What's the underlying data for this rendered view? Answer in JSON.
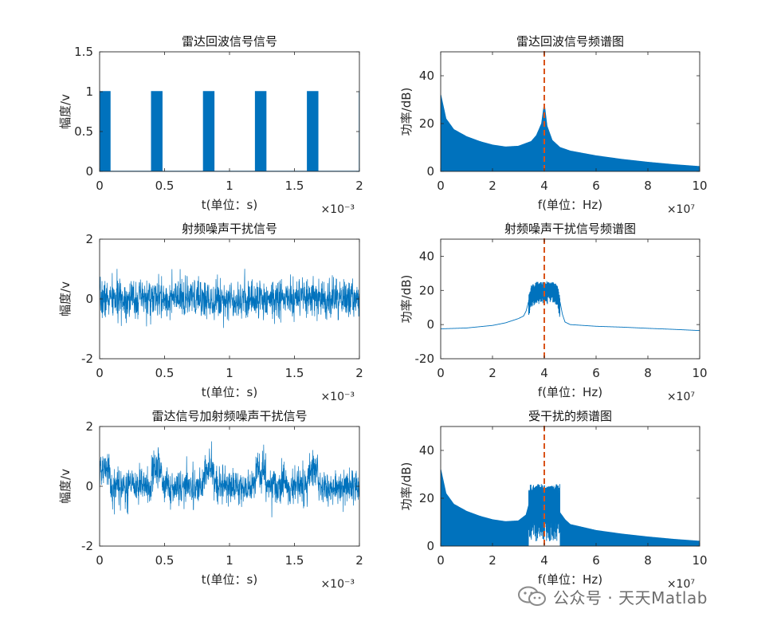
{
  "chart_data": [
    {
      "type": "line",
      "title": "雷达回波信号信号",
      "xlabel": "t(单位：s)",
      "ylabel": "幅度/v",
      "xlim": [
        0,
        0.002
      ],
      "ylim": [
        0,
        1.5
      ],
      "xticks": [
        0,
        0.0005,
        0.001,
        0.0015,
        0.002
      ],
      "xtick_labels": [
        "0",
        "0.5",
        "1",
        "1.5",
        "2"
      ],
      "yticks": [
        0,
        0.5,
        1,
        1.5
      ],
      "ytick_labels": [
        "0",
        "0.5",
        "1",
        "1.5"
      ],
      "x_exponent": "×10⁻³",
      "color": "#0072bd",
      "series": [
        {
          "kind": "pulse_train",
          "pulse_starts": [
            0,
            0.0004,
            0.0008,
            0.0012,
            0.0016,
            0.002
          ],
          "pulse_width": 8e-05,
          "high": 1,
          "low": 0
        }
      ]
    },
    {
      "type": "line",
      "title": "雷达回波信号频谱图",
      "xlabel": "f(单位：Hz)",
      "ylabel": "功率/dB)",
      "xlim": [
        0,
        100000000
      ],
      "ylim": [
        0,
        50
      ],
      "xticks": [
        0,
        20000000,
        40000000,
        60000000,
        80000000,
        100000000
      ],
      "xtick_labels": [
        "0",
        "2",
        "4",
        "6",
        "8",
        "10"
      ],
      "yticks": [
        0,
        20,
        40
      ],
      "ytick_labels": [
        "0",
        "20",
        "40"
      ],
      "x_exponent": "×10⁷",
      "color": "#0072bd",
      "marker_line": {
        "x": 40000000,
        "color": "#d95319",
        "style": "dashed"
      },
      "series": [
        {
          "kind": "filled_spectrum",
          "envelope_x": [
            0,
            2000000,
            5000000,
            10000000,
            15000000,
            20000000,
            25000000,
            30000000,
            35000000,
            37000000,
            39000000,
            40000000,
            41000000,
            43000000,
            46000000,
            50000000,
            60000000,
            70000000,
            80000000,
            90000000,
            100000000
          ],
          "envelope_y": [
            32,
            22,
            17.5,
            14.5,
            12.5,
            11,
            10.2,
            10.5,
            12.5,
            15,
            20,
            28,
            19,
            13,
            10,
            8.5,
            6.5,
            5,
            3.8,
            2.8,
            2
          ],
          "floor_y": 0
        }
      ]
    },
    {
      "type": "line",
      "title": "射频噪声干扰信号",
      "xlabel": "t(单位：s)",
      "ylabel": "幅度/v",
      "xlim": [
        0,
        0.002
      ],
      "ylim": [
        -2,
        2
      ],
      "xticks": [
        0,
        0.0005,
        0.001,
        0.0015,
        0.002
      ],
      "xtick_labels": [
        "0",
        "0.5",
        "1",
        "1.5",
        "2"
      ],
      "yticks": [
        -2,
        0,
        2
      ],
      "ytick_labels": [
        "-2",
        "0",
        "2"
      ],
      "x_exponent": "×10⁻³",
      "color": "#0072bd",
      "series": [
        {
          "kind": "noise",
          "mean": 0,
          "amplitude": 0.85,
          "peak": 1.3,
          "samples": 1400,
          "seed": 7
        }
      ]
    },
    {
      "type": "line",
      "title": "射频噪声干扰信号频谱图",
      "xlabel": "f(单位：Hz)",
      "ylabel": "功率/dB)",
      "xlim": [
        0,
        100000000
      ],
      "ylim": [
        -20,
        50
      ],
      "xticks": [
        0,
        20000000,
        40000000,
        60000000,
        80000000,
        100000000
      ],
      "xtick_labels": [
        "0",
        "2",
        "4",
        "6",
        "8",
        "10"
      ],
      "yticks": [
        -20,
        0,
        20,
        40
      ],
      "ytick_labels": [
        "-20",
        "0",
        "20",
        "40"
      ],
      "x_exponent": "×10⁷",
      "color": "#0072bd",
      "marker_line": {
        "x": 40000000,
        "color": "#d95319",
        "style": "dashed"
      },
      "series": [
        {
          "kind": "band_spectrum",
          "x": [
            0,
            10000000,
            20000000,
            25000000,
            30000000,
            32000000,
            33000000,
            34000000,
            35000000,
            37000000,
            40000000,
            43000000,
            45000000,
            46000000,
            47000000,
            48000000,
            50000000,
            55000000,
            60000000,
            70000000,
            80000000,
            90000000,
            100000000
          ],
          "y": [
            -2.5,
            -2,
            -0.5,
            1,
            3.5,
            5,
            8,
            14,
            20,
            22,
            22,
            22,
            21,
            14,
            6,
            1.5,
            0,
            -0.5,
            -1,
            -1.5,
            -2.2,
            -2.8,
            -3.5
          ],
          "band": [
            34000000,
            46000000
          ],
          "band_jitter": 3
        }
      ]
    },
    {
      "type": "line",
      "title": "雷达信号加射频噪声干扰信号",
      "xlabel": "t(单位：s)",
      "ylabel": "幅度/v",
      "xlim": [
        0,
        0.002
      ],
      "ylim": [
        -2,
        2
      ],
      "xticks": [
        0,
        0.0005,
        0.001,
        0.0015,
        0.002
      ],
      "xtick_labels": [
        "0",
        "0.5",
        "1",
        "1.5",
        "2"
      ],
      "yticks": [
        -2,
        0,
        2
      ],
      "ytick_labels": [
        "-2",
        "0",
        "2"
      ],
      "x_exponent": "×10⁻³",
      "color": "#0072bd",
      "series": [
        {
          "kind": "noise_plus_pulses",
          "mean": 0,
          "amplitude": 0.8,
          "peak": 1.9,
          "samples": 1400,
          "seed": 21,
          "pulse_starts": [
            0,
            0.0004,
            0.0008,
            0.0012,
            0.0016
          ],
          "pulse_width": 8e-05,
          "pulse_high": 1
        }
      ]
    },
    {
      "type": "line",
      "title": "受干扰的频谱图",
      "xlabel": "f(单位：Hz)",
      "ylabel": "功率/dB)",
      "xlim": [
        0,
        100000000
      ],
      "ylim": [
        0,
        50
      ],
      "xticks": [
        0,
        20000000,
        40000000,
        60000000,
        80000000,
        100000000
      ],
      "xtick_labels": [
        "0",
        "2",
        "4",
        "6",
        "8",
        "10"
      ],
      "yticks": [
        0,
        20,
        40
      ],
      "ytick_labels": [
        "0",
        "20",
        "40"
      ],
      "x_exponent": "×10⁷",
      "color": "#0072bd",
      "marker_line": {
        "x": 40000000,
        "color": "#d95319",
        "style": "dashed"
      },
      "series": [
        {
          "kind": "filled_spectrum",
          "envelope_x": [
            0,
            2000000,
            5000000,
            10000000,
            15000000,
            20000000,
            25000000,
            30000000,
            33000000,
            34000000,
            35000000,
            37000000,
            40000000,
            43000000,
            45000000,
            46000000,
            48000000,
            50000000,
            60000000,
            70000000,
            80000000,
            90000000,
            100000000
          ],
          "envelope_y": [
            32,
            22,
            17.5,
            14.5,
            12.5,
            11,
            10.2,
            10.5,
            13,
            17,
            23,
            25,
            24,
            25,
            22,
            14,
            11,
            9,
            6.5,
            5,
            3.8,
            2.8,
            2
          ],
          "band": [
            34000000,
            46000000
          ],
          "band_level": 24,
          "floor_y": 0
        }
      ]
    }
  ],
  "watermark": {
    "text": "公众号 · 天天Matlab",
    "icon": "wechat-icon"
  }
}
